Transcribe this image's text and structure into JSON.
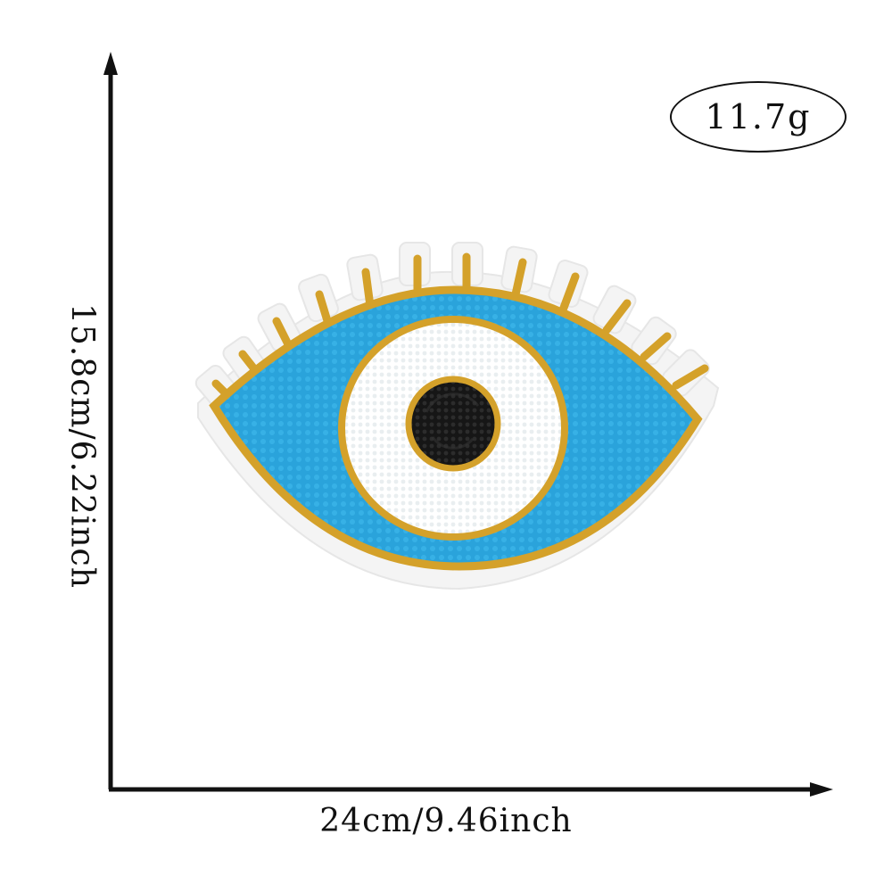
{
  "dimensions": {
    "width_label": "24cm/9.46inch",
    "height_label": "15.8cm/6.22inch",
    "weight_label": "11.7g"
  },
  "colors": {
    "axis": "#111111",
    "sequin_blue": "#2aa3db",
    "gold_thread": "#d4a12a",
    "felt_backing": "#f4f4f4",
    "pupil": "#1b1b1b"
  },
  "icons": {
    "product": "evil-eye-patch-icon"
  }
}
